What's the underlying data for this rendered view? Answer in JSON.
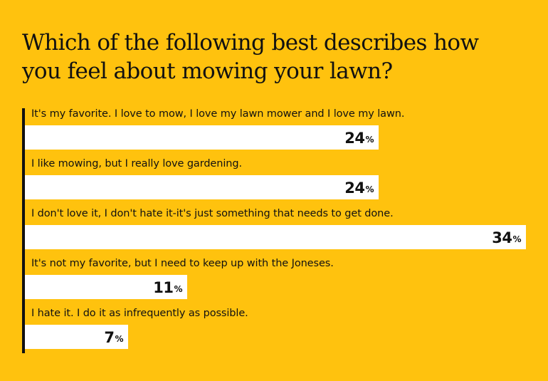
{
  "chart_data": {
    "type": "bar",
    "orientation": "horizontal",
    "title": "Which of the following best describes how you feel about mowing your lawn?",
    "unit": "%",
    "xlim": [
      0,
      34
    ],
    "categories": [
      "It's my favorite. I love to mow, I love my lawn mower and I love my lawn.",
      "I like mowing, but I really love gardening.",
      "I don't love it, I don't hate it-it's just something that needs to get done.",
      "It's not my favorite, but I need to keep up with the Joneses.",
      "I hate it. I do it as infrequently as possible."
    ],
    "values": [
      24,
      24,
      34,
      11,
      7
    ]
  },
  "colors": {
    "background": "#FFC20E",
    "bar": "#FFFFFF",
    "text": "#111111"
  }
}
